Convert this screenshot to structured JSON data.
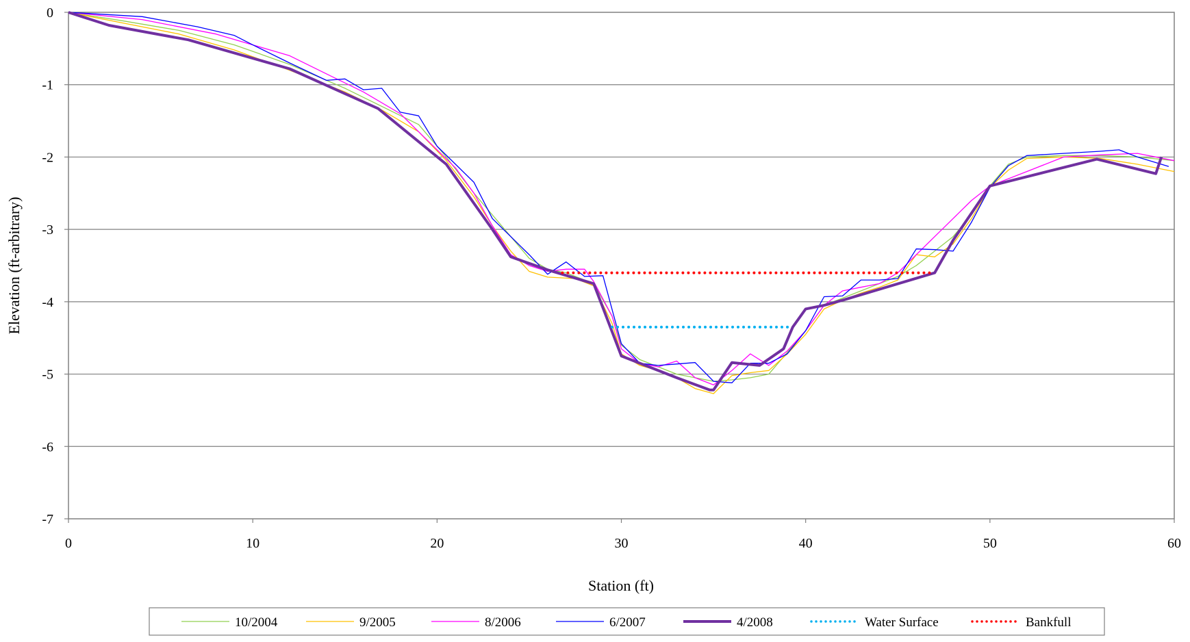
{
  "chart_data": {
    "type": "line",
    "title": "",
    "xlabel": "Station (ft)",
    "ylabel": "Elevation (ft-arbitrary)",
    "xlim": [
      0,
      60
    ],
    "ylim": [
      -7,
      0
    ],
    "xticks": [
      0,
      10,
      20,
      30,
      40,
      50,
      60
    ],
    "yticks": [
      0,
      -1,
      -2,
      -3,
      -4,
      -5,
      -6,
      -7
    ],
    "grid": "horizontal",
    "legend_position": "bottom",
    "series": [
      {
        "name": "10/2004",
        "color": "#92d050",
        "style": "solid",
        "width": 1.3,
        "points": [
          [
            0,
            0
          ],
          [
            3,
            -0.12
          ],
          [
            6,
            -0.25
          ],
          [
            9,
            -0.45
          ],
          [
            12,
            -0.72
          ],
          [
            15,
            -1.05
          ],
          [
            17,
            -1.3
          ],
          [
            19,
            -1.55
          ],
          [
            20.5,
            -2
          ],
          [
            22,
            -2.5
          ],
          [
            23,
            -2.8
          ],
          [
            24,
            -3.1
          ],
          [
            25,
            -3.4
          ],
          [
            26,
            -3.55
          ],
          [
            27,
            -3.6
          ],
          [
            28.5,
            -3.75
          ],
          [
            29.5,
            -4.2
          ],
          [
            30,
            -4.6
          ],
          [
            31,
            -4.8
          ],
          [
            32,
            -4.9
          ],
          [
            33,
            -5
          ],
          [
            34,
            -5.05
          ],
          [
            35,
            -5.1
          ],
          [
            36,
            -5.08
          ],
          [
            37,
            -5.05
          ],
          [
            38,
            -5
          ],
          [
            39,
            -4.7
          ],
          [
            40,
            -4.4
          ],
          [
            41,
            -4.05
          ],
          [
            42,
            -3.95
          ],
          [
            43,
            -3.85
          ],
          [
            44,
            -3.75
          ],
          [
            45,
            -3.65
          ],
          [
            46,
            -3.5
          ],
          [
            47,
            -3.3
          ],
          [
            48,
            -3.1
          ],
          [
            49,
            -2.8
          ],
          [
            50,
            -2.4
          ],
          [
            51,
            -2.1
          ],
          [
            52,
            -2
          ],
          [
            54,
            -1.98
          ],
          [
            56,
            -1.98
          ],
          [
            58,
            -2
          ],
          [
            60,
            -2.05
          ]
        ]
      },
      {
        "name": "9/2005",
        "color": "#ffc000",
        "style": "solid",
        "width": 1.3,
        "points": [
          [
            0,
            0
          ],
          [
            3,
            -0.15
          ],
          [
            6,
            -0.3
          ],
          [
            9,
            -0.52
          ],
          [
            12,
            -0.8
          ],
          [
            15,
            -1.1
          ],
          [
            17,
            -1.35
          ],
          [
            19,
            -1.65
          ],
          [
            20.5,
            -2.05
          ],
          [
            22,
            -2.55
          ],
          [
            23,
            -2.95
          ],
          [
            24,
            -3.3
          ],
          [
            25,
            -3.58
          ],
          [
            26,
            -3.66
          ],
          [
            27.5,
            -3.68
          ],
          [
            28.5,
            -3.78
          ],
          [
            29.5,
            -4.3
          ],
          [
            30,
            -4.72
          ],
          [
            31,
            -4.88
          ],
          [
            32,
            -4.95
          ],
          [
            33,
            -5.05
          ],
          [
            34,
            -5.2
          ],
          [
            35,
            -5.27
          ],
          [
            36,
            -5.02
          ],
          [
            37,
            -4.98
          ],
          [
            38,
            -4.95
          ],
          [
            39,
            -4.72
          ],
          [
            40,
            -4.45
          ],
          [
            41,
            -4.1
          ],
          [
            42,
            -3.98
          ],
          [
            43,
            -3.88
          ],
          [
            44,
            -3.8
          ],
          [
            45,
            -3.7
          ],
          [
            46,
            -3.35
          ],
          [
            47,
            -3.38
          ],
          [
            48,
            -3.2
          ],
          [
            49,
            -2.85
          ],
          [
            50,
            -2.42
          ],
          [
            51,
            -2.18
          ],
          [
            52,
            -2.02
          ],
          [
            54,
            -2
          ],
          [
            56,
            -2.02
          ],
          [
            58,
            -2.1
          ],
          [
            60,
            -2.2
          ]
        ]
      },
      {
        "name": "8/2006",
        "color": "#ff00ff",
        "style": "solid",
        "width": 1.3,
        "points": [
          [
            0,
            0
          ],
          [
            4,
            -0.1
          ],
          [
            8,
            -0.3
          ],
          [
            10,
            -0.45
          ],
          [
            12,
            -0.6
          ],
          [
            14,
            -0.85
          ],
          [
            16,
            -1.1
          ],
          [
            18,
            -1.4
          ],
          [
            20,
            -1.9
          ],
          [
            21,
            -2.15
          ],
          [
            22,
            -2.5
          ],
          [
            23,
            -2.95
          ],
          [
            24,
            -3.35
          ],
          [
            25,
            -3.5
          ],
          [
            26,
            -3.58
          ],
          [
            27,
            -3.55
          ],
          [
            28,
            -3.55
          ],
          [
            28.5,
            -3.72
          ],
          [
            29.5,
            -4.2
          ],
          [
            30,
            -4.65
          ],
          [
            31,
            -4.85
          ],
          [
            32,
            -4.9
          ],
          [
            33,
            -4.82
          ],
          [
            34,
            -5.05
          ],
          [
            35,
            -5.15
          ],
          [
            36,
            -4.95
          ],
          [
            37,
            -4.72
          ],
          [
            38,
            -4.88
          ],
          [
            39,
            -4.68
          ],
          [
            40,
            -4.4
          ],
          [
            41,
            -4.05
          ],
          [
            42,
            -3.85
          ],
          [
            43,
            -3.8
          ],
          [
            44,
            -3.75
          ],
          [
            45,
            -3.6
          ],
          [
            46,
            -3.35
          ],
          [
            47,
            -3.1
          ],
          [
            48,
            -2.85
          ],
          [
            49,
            -2.6
          ],
          [
            50,
            -2.4
          ],
          [
            52,
            -2.2
          ],
          [
            54,
            -2
          ],
          [
            56,
            -1.97
          ],
          [
            58,
            -1.95
          ],
          [
            60,
            -2.05
          ]
        ]
      },
      {
        "name": "6/2007",
        "color": "#0000ff",
        "style": "solid",
        "width": 1.3,
        "points": [
          [
            0,
            0
          ],
          [
            4,
            -0.06
          ],
          [
            7,
            -0.2
          ],
          [
            9,
            -0.32
          ],
          [
            10,
            -0.45
          ],
          [
            12,
            -0.7
          ],
          [
            14,
            -0.94
          ],
          [
            15,
            -0.92
          ],
          [
            16,
            -1.07
          ],
          [
            17,
            -1.05
          ],
          [
            18,
            -1.38
          ],
          [
            19,
            -1.43
          ],
          [
            20,
            -1.85
          ],
          [
            21,
            -2.1
          ],
          [
            22,
            -2.35
          ],
          [
            23,
            -2.85
          ],
          [
            24,
            -3.1
          ],
          [
            25,
            -3.35
          ],
          [
            26,
            -3.62
          ],
          [
            27,
            -3.45
          ],
          [
            27.5,
            -3.55
          ],
          [
            28,
            -3.65
          ],
          [
            29,
            -3.64
          ],
          [
            30,
            -4.58
          ],
          [
            31,
            -4.85
          ],
          [
            32,
            -4.88
          ],
          [
            33,
            -4.86
          ],
          [
            34,
            -4.84
          ],
          [
            35,
            -5.1
          ],
          [
            36,
            -5.12
          ],
          [
            37,
            -4.85
          ],
          [
            38,
            -4.85
          ],
          [
            39,
            -4.72
          ],
          [
            40,
            -4.4
          ],
          [
            41,
            -3.93
          ],
          [
            42,
            -3.92
          ],
          [
            43,
            -3.7
          ],
          [
            44,
            -3.7
          ],
          [
            45,
            -3.68
          ],
          [
            46,
            -3.27
          ],
          [
            47,
            -3.28
          ],
          [
            48,
            -3.3
          ],
          [
            49,
            -2.9
          ],
          [
            50,
            -2.42
          ],
          [
            51,
            -2.12
          ],
          [
            52,
            -1.98
          ],
          [
            54,
            -1.95
          ],
          [
            56,
            -1.92
          ],
          [
            57,
            -1.9
          ],
          [
            58,
            -2
          ],
          [
            59.7,
            -2.13
          ]
        ]
      },
      {
        "name": "4/2008",
        "color": "#7030a0",
        "style": "solid",
        "width": 4,
        "points": [
          [
            0,
            0
          ],
          [
            2.2,
            -0.18
          ],
          [
            6.5,
            -0.38
          ],
          [
            12,
            -0.78
          ],
          [
            16.8,
            -1.33
          ],
          [
            20.5,
            -2.1
          ],
          [
            23,
            -3
          ],
          [
            24,
            -3.38
          ],
          [
            26,
            -3.56
          ],
          [
            28.5,
            -3.75
          ],
          [
            30,
            -4.75
          ],
          [
            33,
            -5.05
          ],
          [
            34.8,
            -5.22
          ],
          [
            35,
            -5.22
          ],
          [
            36,
            -4.84
          ],
          [
            37.5,
            -4.88
          ],
          [
            38.8,
            -4.65
          ],
          [
            39.3,
            -4.35
          ],
          [
            40,
            -4.1
          ],
          [
            41,
            -4.05
          ],
          [
            42,
            -3.98
          ],
          [
            47,
            -3.6
          ],
          [
            48,
            -3.15
          ],
          [
            50,
            -2.4
          ],
          [
            55.8,
            -2.03
          ],
          [
            59,
            -2.23
          ],
          [
            59.3,
            -2
          ]
        ]
      },
      {
        "name": "Water Surface",
        "color": "#00b0f0",
        "style": "dotted",
        "width": 4,
        "points": [
          [
            29.5,
            -4.35
          ],
          [
            39.2,
            -4.35
          ]
        ]
      },
      {
        "name": "Bankfull",
        "color": "#ff0000",
        "style": "dotted",
        "width": 4,
        "points": [
          [
            26.8,
            -3.6
          ],
          [
            47,
            -3.6
          ]
        ]
      }
    ]
  }
}
